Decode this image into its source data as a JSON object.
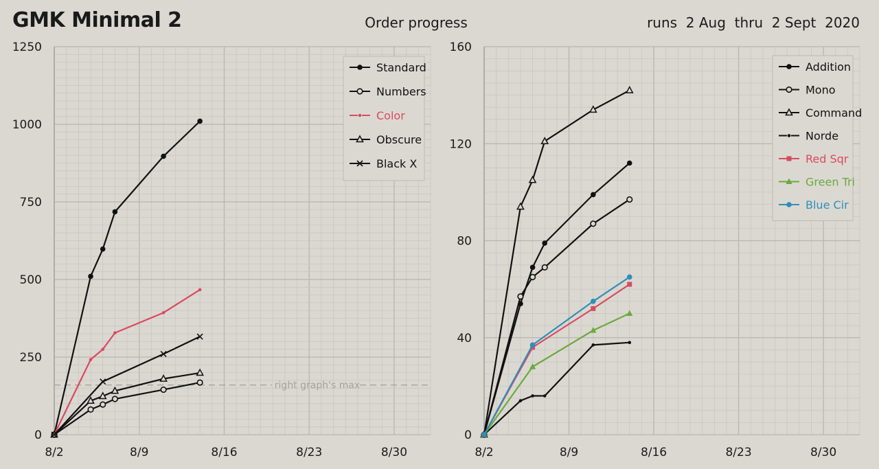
{
  "header": {
    "title": "GMK Minimal 2",
    "subtitle": "Order progress",
    "dates": "runs  2 Aug  thru  2 Sept  2020"
  },
  "chart_data": [
    {
      "type": "line",
      "x_tick_labels": [
        "8/2",
        "8/9",
        "8/16",
        "8/23",
        "8/30"
      ],
      "xlim": [
        "2020-08-02",
        "2020-09-02"
      ],
      "ylim": [
        0,
        1250
      ],
      "y_ticks": [
        0,
        250,
        500,
        750,
        1000,
        1250
      ],
      "grid": true,
      "legend_position": "top-right",
      "reference_line": {
        "value": 160,
        "label": "right graph's max"
      },
      "series": [
        {
          "name": "Standard",
          "marker": "filled-circle",
          "color": "#111111",
          "dashed": false,
          "points": [
            [
              "2020-08-02",
              0
            ],
            [
              "2020-08-05",
              510
            ],
            [
              "2020-08-06",
              598
            ],
            [
              "2020-08-07",
              718
            ],
            [
              "2020-08-11",
              897
            ],
            [
              "2020-08-14",
              1010
            ]
          ]
        },
        {
          "name": "Numbers",
          "marker": "open-circle",
          "color": "#111111",
          "dashed": false,
          "points": [
            [
              "2020-08-02",
              0
            ],
            [
              "2020-08-05",
              81
            ],
            [
              "2020-08-06",
              97
            ],
            [
              "2020-08-07",
              115
            ],
            [
              "2020-08-11",
              145
            ],
            [
              "2020-08-14",
              168
            ]
          ]
        },
        {
          "name": "Color",
          "marker": "small-dot",
          "color": "#d94a5e",
          "dashed": true,
          "points": [
            [
              "2020-08-02",
              0
            ],
            [
              "2020-08-05",
              242
            ],
            [
              "2020-08-06",
              275
            ],
            [
              "2020-08-07",
              328
            ],
            [
              "2020-08-11",
              393
            ],
            [
              "2020-08-14",
              467
            ]
          ]
        },
        {
          "name": "Obscure",
          "marker": "open-triangle",
          "color": "#111111",
          "dashed": false,
          "points": [
            [
              "2020-08-02",
              0
            ],
            [
              "2020-08-05",
              109
            ],
            [
              "2020-08-06",
              124
            ],
            [
              "2020-08-07",
              141
            ],
            [
              "2020-08-11",
              180
            ],
            [
              "2020-08-14",
              199
            ]
          ]
        },
        {
          "name": "Black X",
          "marker": "x",
          "color": "#111111",
          "dashed": false,
          "points": [
            [
              "2020-08-02",
              0
            ],
            [
              "2020-08-06",
              171
            ],
            [
              "2020-08-11",
              260
            ],
            [
              "2020-08-14",
              316
            ]
          ]
        }
      ]
    },
    {
      "type": "line",
      "x_tick_labels": [
        "8/2",
        "8/9",
        "8/16",
        "8/23",
        "8/30"
      ],
      "xlim": [
        "2020-08-02",
        "2020-09-02"
      ],
      "ylim": [
        0,
        160
      ],
      "y_ticks": [
        0,
        40,
        80,
        120,
        160
      ],
      "grid": true,
      "legend_position": "top-right",
      "series": [
        {
          "name": "Addition",
          "marker": "filled-circle",
          "color": "#111111",
          "dashed": false,
          "points": [
            [
              "2020-08-02",
              0
            ],
            [
              "2020-08-05",
              54
            ],
            [
              "2020-08-06",
              69
            ],
            [
              "2020-08-07",
              79
            ],
            [
              "2020-08-11",
              99
            ],
            [
              "2020-08-14",
              112
            ]
          ]
        },
        {
          "name": "Mono",
          "marker": "open-circle",
          "color": "#111111",
          "dashed": false,
          "points": [
            [
              "2020-08-02",
              0
            ],
            [
              "2020-08-05",
              57
            ],
            [
              "2020-08-06",
              65
            ],
            [
              "2020-08-07",
              69
            ],
            [
              "2020-08-11",
              87
            ],
            [
              "2020-08-14",
              97
            ]
          ]
        },
        {
          "name": "Command",
          "marker": "open-triangle",
          "color": "#111111",
          "dashed": false,
          "points": [
            [
              "2020-08-02",
              0
            ],
            [
              "2020-08-05",
              94
            ],
            [
              "2020-08-06",
              105
            ],
            [
              "2020-08-07",
              121
            ],
            [
              "2020-08-11",
              134
            ],
            [
              "2020-08-14",
              142
            ]
          ]
        },
        {
          "name": "Norde",
          "marker": "small-dot",
          "color": "#111111",
          "dashed": true,
          "points": [
            [
              "2020-08-02",
              0
            ],
            [
              "2020-08-05",
              14
            ],
            [
              "2020-08-06",
              16
            ],
            [
              "2020-08-07",
              16
            ],
            [
              "2020-08-11",
              37
            ],
            [
              "2020-08-14",
              38
            ]
          ]
        },
        {
          "name": "Red Sqr",
          "marker": "filled-square",
          "color": "#d94a5e",
          "dashed": false,
          "points": [
            [
              "2020-08-02",
              0
            ],
            [
              "2020-08-06",
              36
            ],
            [
              "2020-08-11",
              52
            ],
            [
              "2020-08-14",
              62
            ]
          ]
        },
        {
          "name": "Green Tri",
          "marker": "filled-triangle",
          "color": "#6aaa3a",
          "dashed": false,
          "points": [
            [
              "2020-08-02",
              0
            ],
            [
              "2020-08-06",
              28
            ],
            [
              "2020-08-11",
              43
            ],
            [
              "2020-08-14",
              50
            ]
          ]
        },
        {
          "name": "Blue Cir",
          "marker": "filled-circle",
          "color": "#2e8fb8",
          "dashed": false,
          "points": [
            [
              "2020-08-02",
              0
            ],
            [
              "2020-08-06",
              37
            ],
            [
              "2020-08-11",
              55
            ],
            [
              "2020-08-14",
              65
            ]
          ]
        }
      ]
    }
  ]
}
